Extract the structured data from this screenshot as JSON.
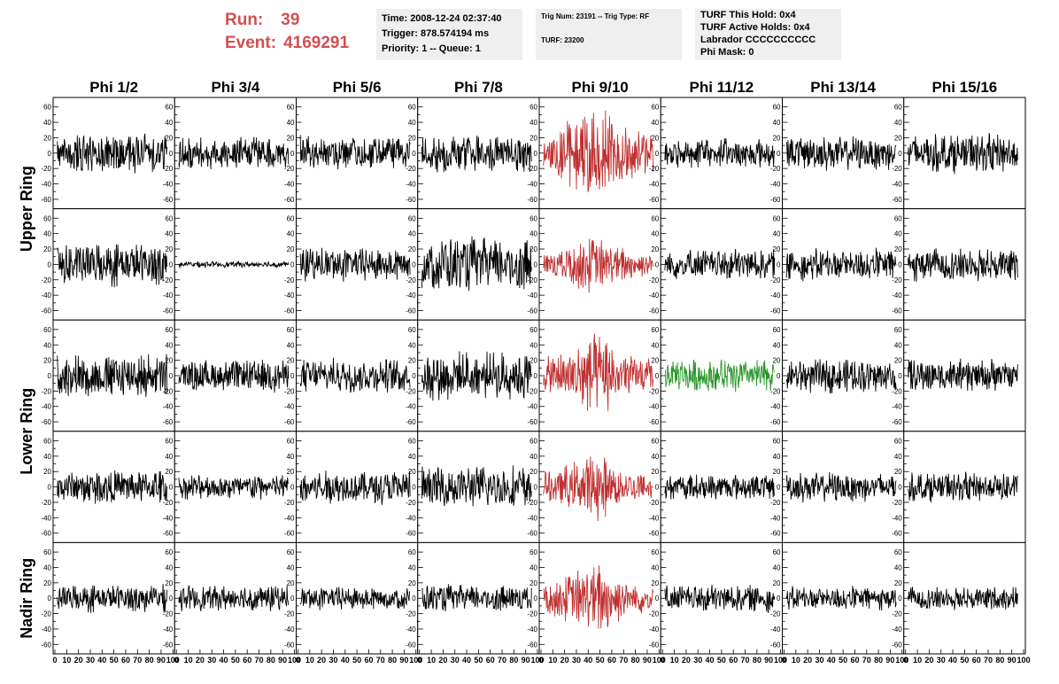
{
  "header": {
    "run_label": "Run:",
    "run_value": "39",
    "event_label": "Event:",
    "event_value": "4169291",
    "run_color": "#d05050"
  },
  "info": {
    "time": "Time: 2008-12-24 02:37:40",
    "trigger": "Trigger: 878.574194 ms",
    "priority": "Priority: 1 -- Queue: 1",
    "trig_num": "Trig Num: 23191 -- Trig Type: RF",
    "turf": "TURF: 23200",
    "turf_this_hold": "TURF This Hold: 0x4",
    "turf_active_holds": "TURF Active Holds: 0x4",
    "labrador": "Labrador CCCCCCCCCC",
    "phi_mask": "Phi Mask: 0"
  },
  "chart_data": {
    "type": "line",
    "columns": [
      "Phi 1/2",
      "Phi 3/4",
      "Phi 5/6",
      "Phi 7/8",
      "Phi 9/10",
      "Phi 11/12",
      "Phi 13/14",
      "Phi 15/16"
    ],
    "ring_labels": [
      {
        "label": "Upper Ring",
        "rows": [
          0,
          1
        ]
      },
      {
        "label": "Lower Ring",
        "rows": [
          2,
          3
        ]
      },
      {
        "label": "Nadir Ring",
        "rows": [
          4,
          4
        ]
      }
    ],
    "xlim": [
      0,
      100
    ],
    "ylim": [
      -70,
      70
    ],
    "x_ticks": [
      "0",
      "10",
      "20",
      "30",
      "40",
      "50",
      "60",
      "70",
      "80",
      "90",
      "100"
    ],
    "y_ticks": [
      "60",
      "40",
      "20",
      "0",
      "-20",
      "-40",
      "-60"
    ],
    "colors": {
      "normal": "#000000",
      "triggered": "#c03030",
      "highlight": "#2a962a"
    },
    "panels": [
      [
        "normal",
        "normal",
        "normal",
        "normal",
        "triggered",
        "normal",
        "normal",
        "normal"
      ],
      [
        "normal",
        "normal",
        "normal",
        "normal",
        "triggered",
        "normal",
        "normal",
        "normal"
      ],
      [
        "normal",
        "normal",
        "normal",
        "normal",
        "triggered",
        "highlight",
        "normal",
        "normal"
      ],
      [
        "normal",
        "normal",
        "normal",
        "normal",
        "triggered",
        "normal",
        "normal",
        "normal"
      ],
      [
        "normal",
        "normal",
        "normal",
        "normal",
        "triggered",
        "normal",
        "normal",
        "normal"
      ]
    ],
    "amplitudes": [
      [
        20,
        17,
        17,
        20,
        38,
        15,
        17,
        20
      ],
      [
        22,
        3,
        17,
        28,
        22,
        16,
        16,
        17
      ],
      [
        22,
        16,
        17,
        24,
        32,
        17,
        17,
        17
      ],
      [
        17,
        13,
        17,
        22,
        26,
        13,
        15,
        15
      ],
      [
        14,
        13,
        12,
        14,
        28,
        14,
        12,
        12
      ]
    ],
    "samples_per_trace": 220
  }
}
